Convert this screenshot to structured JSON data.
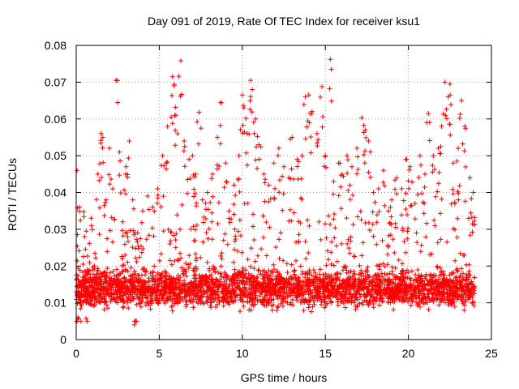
{
  "chart_data": {
    "type": "scatter",
    "title": "Day 091 of 2019, Rate Of TEC Index for receiver ksu1",
    "xlabel": "GPS time / hours",
    "ylabel": "ROTI / TECUs",
    "xlim": [
      0,
      25
    ],
    "ylim": [
      0,
      0.08
    ],
    "x_ticks": [
      0,
      5,
      10,
      15,
      20,
      25
    ],
    "y_ticks": [
      0,
      0.01,
      0.02,
      0.03,
      0.04,
      0.05,
      0.06,
      0.07,
      0.08
    ],
    "x_tick_labels": [
      "0",
      "5",
      "10",
      "15",
      "20",
      "25"
    ],
    "y_tick_labels": [
      "0",
      "0.01",
      "0.02",
      "0.03",
      "0.04",
      "0.05",
      "0.06",
      "0.07",
      "0.08"
    ],
    "grid": true,
    "marker": "+",
    "point_color": "#ff0000",
    "series": [
      {
        "values_note_free": true,
        "points": [
          [
            0.05,
            0.046
          ],
          [
            0.1,
            0.006
          ],
          [
            0.2,
            0.036
          ],
          [
            0.3,
            0.015
          ],
          [
            0.5,
            0.028
          ],
          [
            0.7,
            0.012
          ],
          [
            0.9,
            0.033
          ],
          [
            1.1,
            0.02
          ],
          [
            1.3,
            0.045
          ],
          [
            1.5,
            0.056
          ],
          [
            1.6,
            0.055
          ],
          [
            1.8,
            0.038
          ],
          [
            2.0,
            0.052
          ],
          [
            2.2,
            0.041
          ],
          [
            2.4,
            0.0705
          ],
          [
            2.6,
            0.051
          ],
          [
            2.8,
            0.032
          ],
          [
            3.0,
            0.047
          ],
          [
            3.2,
            0.054
          ],
          [
            3.4,
            0.038
          ],
          [
            3.5,
            0.004
          ],
          [
            3.7,
            0.029
          ],
          [
            4.0,
            0.035
          ],
          [
            4.3,
            0.039
          ],
          [
            4.6,
            0.036
          ],
          [
            4.9,
            0.041
          ],
          [
            5.2,
            0.05
          ],
          [
            5.5,
            0.058
          ],
          [
            5.8,
            0.0715
          ],
          [
            5.9,
            0.069
          ],
          [
            6.0,
            0.061
          ],
          [
            6.3,
            0.0758
          ],
          [
            6.5,
            0.054
          ],
          [
            6.8,
            0.049
          ],
          [
            7.0,
            0.05
          ],
          [
            7.2,
            0.045
          ],
          [
            7.4,
            0.0618
          ],
          [
            7.6,
            0.038
          ],
          [
            7.9,
            0.04
          ],
          [
            8.2,
            0.045
          ],
          [
            8.5,
            0.055
          ],
          [
            8.7,
            0.0645
          ],
          [
            9.0,
            0.048
          ],
          [
            9.2,
            0.035
          ],
          [
            9.5,
            0.042
          ],
          [
            9.8,
            0.05
          ],
          [
            10.0,
            0.0665
          ],
          [
            10.1,
            0.063
          ],
          [
            10.3,
            0.056
          ],
          [
            10.5,
            0.0705
          ],
          [
            10.6,
            0.068
          ],
          [
            10.8,
            0.06
          ],
          [
            11.0,
            0.053
          ],
          [
            11.3,
            0.045
          ],
          [
            11.6,
            0.042
          ],
          [
            11.9,
            0.048
          ],
          [
            12.2,
            0.052
          ],
          [
            12.5,
            0.047
          ],
          [
            12.8,
            0.044
          ],
          [
            13.0,
            0.055
          ],
          [
            13.3,
            0.049
          ],
          [
            13.6,
            0.05
          ],
          [
            13.8,
            0.066
          ],
          [
            14.0,
            0.0665
          ],
          [
            14.2,
            0.062
          ],
          [
            14.5,
            0.056
          ],
          [
            14.8,
            0.0688
          ],
          [
            15.0,
            0.05
          ],
          [
            15.3,
            0.0762
          ],
          [
            15.5,
            0.043
          ],
          [
            15.8,
            0.048
          ],
          [
            16.0,
            0.045
          ],
          [
            16.3,
            0.05
          ],
          [
            16.6,
            0.047
          ],
          [
            16.9,
            0.052
          ],
          [
            17.2,
            0.0603
          ],
          [
            17.4,
            0.057
          ],
          [
            17.6,
            0.054
          ],
          [
            17.9,
            0.04
          ],
          [
            18.2,
            0.041
          ],
          [
            18.5,
            0.046
          ],
          [
            18.8,
            0.035
          ],
          [
            19.0,
            0.038
          ],
          [
            19.3,
            0.044
          ],
          [
            19.6,
            0.041
          ],
          [
            19.9,
            0.049
          ],
          [
            20.1,
            0.047
          ],
          [
            20.4,
            0.037
          ],
          [
            20.7,
            0.05
          ],
          [
            21.0,
            0.045
          ],
          [
            21.2,
            0.0615
          ],
          [
            21.5,
            0.05
          ],
          [
            21.8,
            0.052
          ],
          [
            22.0,
            0.058
          ],
          [
            22.2,
            0.07
          ],
          [
            22.4,
            0.066
          ],
          [
            22.5,
            0.0695
          ],
          [
            22.7,
            0.048
          ],
          [
            23.0,
            0.052
          ],
          [
            23.2,
            0.065
          ],
          [
            23.4,
            0.058
          ],
          [
            23.7,
            0.044
          ],
          [
            23.9,
            0.04
          ]
        ],
        "band": {
          "x_range": [
            0,
            24
          ],
          "y_mean": 0.014,
          "y_spread": 0.008,
          "count": 3200
        },
        "band_segments": [
          {
            "x": [
              0,
              1
            ],
            "y_upper": 0.035
          },
          {
            "x": [
              1,
              4
            ],
            "y_upper": 0.03
          },
          {
            "x": [
              4,
              5
            ],
            "y_upper": 0.02
          },
          {
            "x": [
              5,
              9
            ],
            "y_upper": 0.038
          },
          {
            "x": [
              9,
              11
            ],
            "y_upper": 0.04
          },
          {
            "x": [
              11,
              15
            ],
            "y_upper": 0.035
          },
          {
            "x": [
              15,
              19
            ],
            "y_upper": 0.035
          },
          {
            "x": [
              19,
              24
            ],
            "y_upper": 0.04
          }
        ]
      }
    ]
  }
}
